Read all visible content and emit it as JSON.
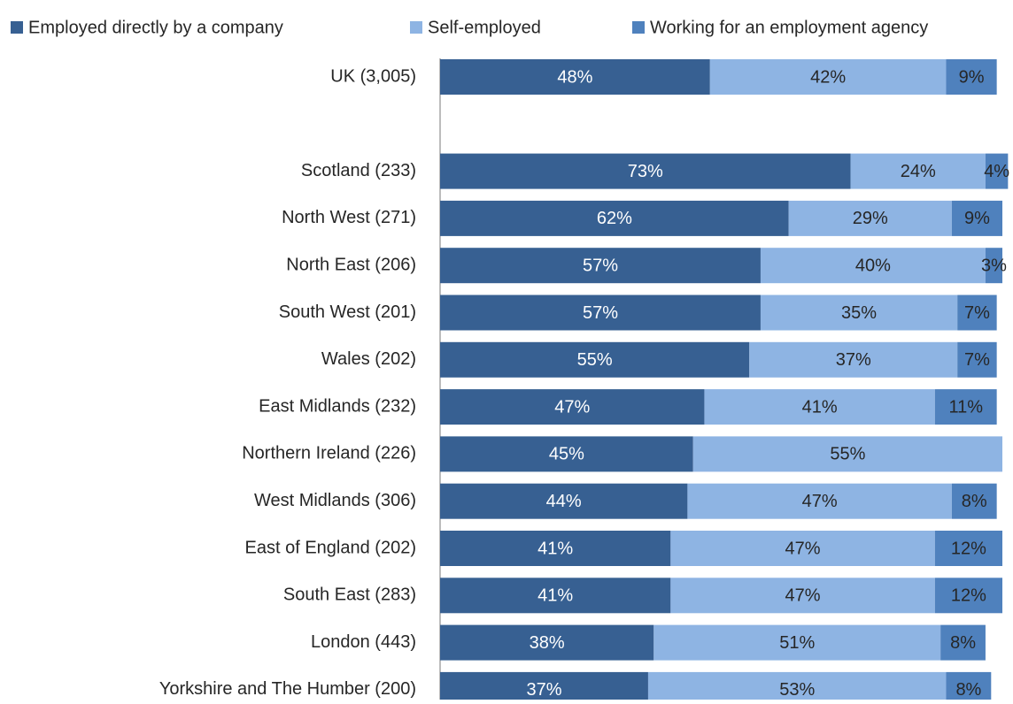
{
  "chart_data": {
    "type": "stacked_bar_horizontal",
    "categories": [
      "UK (3,005)",
      null,
      "Scotland (233)",
      "North West (271)",
      "North East (206)",
      "South West (201)",
      "Wales (202)",
      "East Midlands (232)",
      "Northern Ireland (226)",
      "West Midlands (306)",
      "East of England (202)",
      "South East (283)",
      "London (443)",
      "Yorkshire and The Humber (200)"
    ],
    "series": [
      {
        "name": "Employed directly by a company",
        "color": "#376092",
        "values": [
          48,
          null,
          73,
          62,
          57,
          57,
          55,
          47,
          45,
          44,
          41,
          41,
          38,
          37
        ]
      },
      {
        "name": "Self-employed",
        "color": "#8eb4e3",
        "values": [
          42,
          null,
          24,
          29,
          40,
          35,
          37,
          41,
          55,
          47,
          47,
          47,
          51,
          53
        ]
      },
      {
        "name": "Working for an employment agency",
        "color": "#4f81bd",
        "values": [
          9,
          null,
          4,
          9,
          3,
          7,
          7,
          11,
          null,
          8,
          12,
          12,
          8,
          8
        ]
      }
    ],
    "value_labels": [
      [
        "48%",
        null,
        "73%",
        "62%",
        "57%",
        "57%",
        "55%",
        "47%",
        "45%",
        "44%",
        "41%",
        "41%",
        "38%",
        "37%"
      ],
      [
        "42%",
        null,
        "24%",
        "29%",
        "40%",
        "35%",
        "37%",
        "41%",
        "55%",
        "47%",
        "47%",
        "47%",
        "51%",
        "53%"
      ],
      [
        "9%",
        null,
        "4%",
        "9%",
        "3%",
        "7%",
        "7%",
        "11%",
        null,
        "8%",
        "12%",
        "12%",
        "8%",
        "8%"
      ]
    ],
    "label_colors": [
      "#ffffff",
      "#262626",
      "#262626"
    ],
    "xlim": [
      0,
      100
    ],
    "legend": "top"
  }
}
